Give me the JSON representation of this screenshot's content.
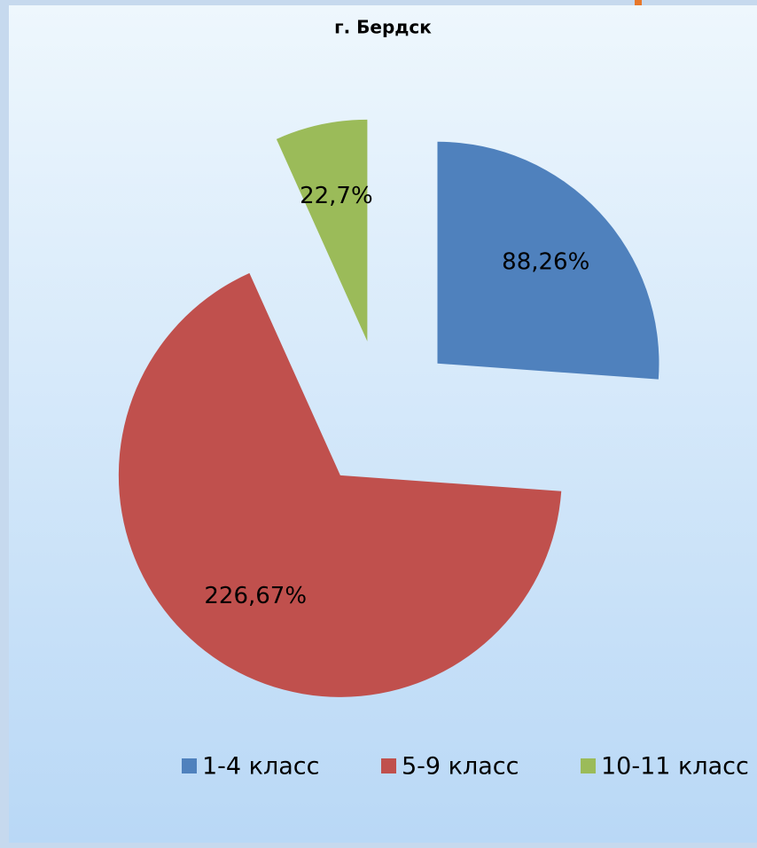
{
  "chart_data": {
    "type": "pie",
    "title": "г. Бердск",
    "categories": [
      "1-4 класс",
      "5-9 класс",
      "10-11 класс"
    ],
    "values": [
      88.26,
      226.67,
      22.7
    ],
    "value_labels": [
      "88,26%",
      "226,67%",
      "22,7%"
    ],
    "colors": [
      "#4f81bd",
      "#c0504d",
      "#9bbb59"
    ],
    "exploded": true,
    "legend": "bottom"
  }
}
